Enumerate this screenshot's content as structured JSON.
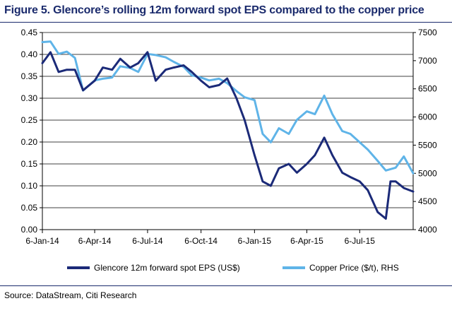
{
  "title": "Figure 5. Glencore’s rolling 12m forward spot EPS compared to the copper price",
  "source": "Source: DataStream, Citi Research",
  "colors": {
    "eps": "#1b2a78",
    "copper": "#5fb4e8",
    "title": "#1a2a6c"
  },
  "chart_data": {
    "type": "line",
    "x_tick_labels": [
      "6-Jan-14",
      "6-Apr-14",
      "6-Jul-14",
      "6-Oct-14",
      "6-Jan-15",
      "6-Apr-15",
      "6-Jul-15"
    ],
    "x_range": [
      "2014-01-06",
      "2015-10-06"
    ],
    "y_left": {
      "ylim": [
        0,
        0.45
      ],
      "ticks": [
        "0.00",
        "0.05",
        "0.10",
        "0.15",
        "0.20",
        "0.25",
        "0.30",
        "0.35",
        "0.40",
        "0.45"
      ]
    },
    "y_right": {
      "ylim": [
        4000,
        7500
      ],
      "ticks": [
        "4000",
        "4500",
        "5000",
        "5500",
        "6000",
        "6500",
        "7000",
        "7500"
      ]
    },
    "grid": "horizontal",
    "legend_position": "bottom",
    "series": [
      {
        "name": "Glencore 12m forward spot EPS (US$)",
        "axis": "left",
        "points": [
          [
            "2014-01-06",
            0.38
          ],
          [
            "2014-01-20",
            0.405
          ],
          [
            "2014-02-03",
            0.36
          ],
          [
            "2014-02-17",
            0.365
          ],
          [
            "2014-03-03",
            0.365
          ],
          [
            "2014-03-17",
            0.318
          ],
          [
            "2014-04-06",
            0.34
          ],
          [
            "2014-04-20",
            0.37
          ],
          [
            "2014-05-06",
            0.365
          ],
          [
            "2014-05-20",
            0.39
          ],
          [
            "2014-06-06",
            0.37
          ],
          [
            "2014-06-20",
            0.38
          ],
          [
            "2014-07-06",
            0.405
          ],
          [
            "2014-07-20",
            0.34
          ],
          [
            "2014-08-06",
            0.365
          ],
          [
            "2014-08-20",
            0.37
          ],
          [
            "2014-09-06",
            0.375
          ],
          [
            "2014-09-20",
            0.36
          ],
          [
            "2014-10-06",
            0.34
          ],
          [
            "2014-10-20",
            0.325
          ],
          [
            "2014-11-06",
            0.33
          ],
          [
            "2014-11-20",
            0.345
          ],
          [
            "2014-12-06",
            0.3
          ],
          [
            "2014-12-20",
            0.25
          ],
          [
            "2015-01-06",
            0.17
          ],
          [
            "2015-01-20",
            0.11
          ],
          [
            "2015-02-03",
            0.1
          ],
          [
            "2015-02-17",
            0.14
          ],
          [
            "2015-03-06",
            0.15
          ],
          [
            "2015-03-20",
            0.13
          ],
          [
            "2015-04-06",
            0.15
          ],
          [
            "2015-04-20",
            0.17
          ],
          [
            "2015-05-06",
            0.21
          ],
          [
            "2015-05-20",
            0.17
          ],
          [
            "2015-06-06",
            0.13
          ],
          [
            "2015-06-20",
            0.12
          ],
          [
            "2015-07-06",
            0.11
          ],
          [
            "2015-07-20",
            0.09
          ],
          [
            "2015-08-06",
            0.04
          ],
          [
            "2015-08-20",
            0.025
          ],
          [
            "2015-08-28",
            0.11
          ],
          [
            "2015-09-06",
            0.11
          ],
          [
            "2015-09-20",
            0.095
          ],
          [
            "2015-10-06",
            0.087
          ]
        ]
      },
      {
        "name": "Copper Price ($/t), RHS",
        "axis": "right",
        "points": [
          [
            "2014-01-06",
            7330
          ],
          [
            "2014-01-20",
            7340
          ],
          [
            "2014-02-03",
            7120
          ],
          [
            "2014-02-17",
            7160
          ],
          [
            "2014-03-03",
            7050
          ],
          [
            "2014-03-17",
            6470
          ],
          [
            "2014-04-06",
            6650
          ],
          [
            "2014-04-20",
            6680
          ],
          [
            "2014-05-06",
            6700
          ],
          [
            "2014-05-20",
            6900
          ],
          [
            "2014-06-06",
            6870
          ],
          [
            "2014-06-20",
            6800
          ],
          [
            "2014-07-06",
            7120
          ],
          [
            "2014-07-20",
            7100
          ],
          [
            "2014-08-06",
            7060
          ],
          [
            "2014-08-20",
            6980
          ],
          [
            "2014-09-06",
            6890
          ],
          [
            "2014-09-20",
            6740
          ],
          [
            "2014-10-06",
            6700
          ],
          [
            "2014-10-20",
            6650
          ],
          [
            "2014-11-06",
            6680
          ],
          [
            "2014-11-20",
            6600
          ],
          [
            "2014-12-06",
            6460
          ],
          [
            "2014-12-20",
            6350
          ],
          [
            "2015-01-06",
            6300
          ],
          [
            "2015-01-20",
            5700
          ],
          [
            "2015-02-03",
            5550
          ],
          [
            "2015-02-17",
            5800
          ],
          [
            "2015-03-06",
            5700
          ],
          [
            "2015-03-20",
            5950
          ],
          [
            "2015-04-06",
            6100
          ],
          [
            "2015-04-20",
            6050
          ],
          [
            "2015-05-06",
            6380
          ],
          [
            "2015-05-20",
            6050
          ],
          [
            "2015-06-06",
            5750
          ],
          [
            "2015-06-20",
            5700
          ],
          [
            "2015-07-06",
            5550
          ],
          [
            "2015-07-20",
            5420
          ],
          [
            "2015-08-06",
            5220
          ],
          [
            "2015-08-20",
            5050
          ],
          [
            "2015-09-06",
            5100
          ],
          [
            "2015-09-20",
            5300
          ],
          [
            "2015-10-06",
            5000
          ]
        ]
      }
    ]
  }
}
